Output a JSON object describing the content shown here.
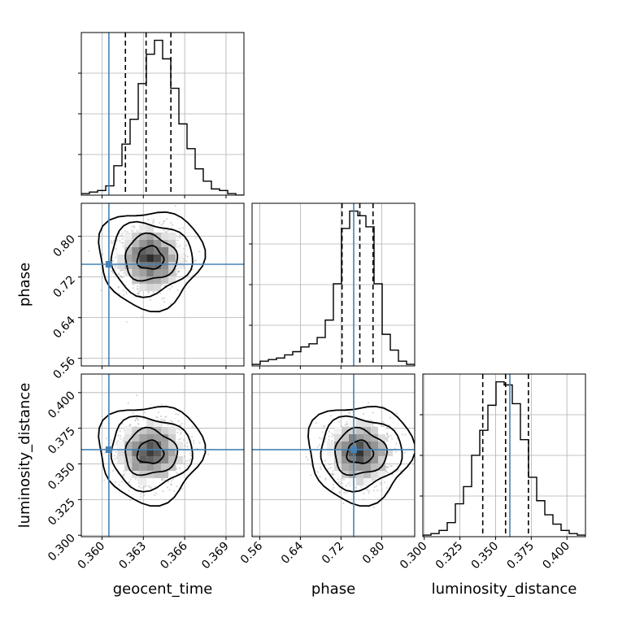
{
  "chart_data": {
    "type": "corner",
    "parameters": [
      "geocent_time",
      "phase",
      "luminosity_distance"
    ],
    "axis_labels": {
      "geocent_time": "geocent_time",
      "phase": "phase",
      "luminosity_distance": "luminosity_distance"
    },
    "ranges": {
      "geocent_time": [
        0.3585,
        0.3703
      ],
      "phase": [
        0.545,
        0.865
      ],
      "luminosity_distance": [
        0.299,
        0.413
      ]
    },
    "ticks": {
      "geocent_time": [
        "0.360",
        "0.363",
        "0.366",
        "0.369"
      ],
      "phase": [
        "0.56",
        "0.64",
        "0.72",
        "0.80"
      ],
      "luminosity_distance": [
        "0.300",
        "0.325",
        "0.350",
        "0.375",
        "0.400"
      ]
    },
    "truths": {
      "geocent_time": 0.3605,
      "phase": 0.745,
      "luminosity_distance": 0.36
    },
    "quantiles": {
      "geocent_time": [
        0.3617,
        0.3632,
        0.365
      ],
      "phase": [
        0.722,
        0.757,
        0.783
      ],
      "luminosity_distance": [
        0.341,
        0.357,
        0.373
      ]
    },
    "histograms": {
      "geocent_time": [
        0.01,
        0.02,
        0.03,
        0.06,
        0.19,
        0.33,
        0.49,
        0.72,
        0.91,
        1.0,
        0.88,
        0.69,
        0.46,
        0.3,
        0.17,
        0.09,
        0.04,
        0.03,
        0.01,
        0.0
      ],
      "phase": [
        0.01,
        0.03,
        0.04,
        0.05,
        0.07,
        0.09,
        0.12,
        0.14,
        0.18,
        0.29,
        0.52,
        0.87,
        0.98,
        0.95,
        0.88,
        0.52,
        0.2,
        0.1,
        0.03,
        0.01
      ],
      "luminosity_distance": [
        0.01,
        0.02,
        0.04,
        0.09,
        0.21,
        0.32,
        0.52,
        0.68,
        0.84,
        0.99,
        0.97,
        0.85,
        0.62,
        0.38,
        0.23,
        0.14,
        0.08,
        0.04,
        0.02,
        0.01
      ]
    },
    "posterior_centers": {
      "geocent_time": 0.3635,
      "phase": 0.757,
      "luminosity_distance": 0.358
    },
    "colors": {
      "truth": "#4682b4",
      "hist": "#000000",
      "scatter": "#a8a8a8",
      "grid": "#b0b0b0"
    },
    "grid": true,
    "truth_lines": true
  }
}
